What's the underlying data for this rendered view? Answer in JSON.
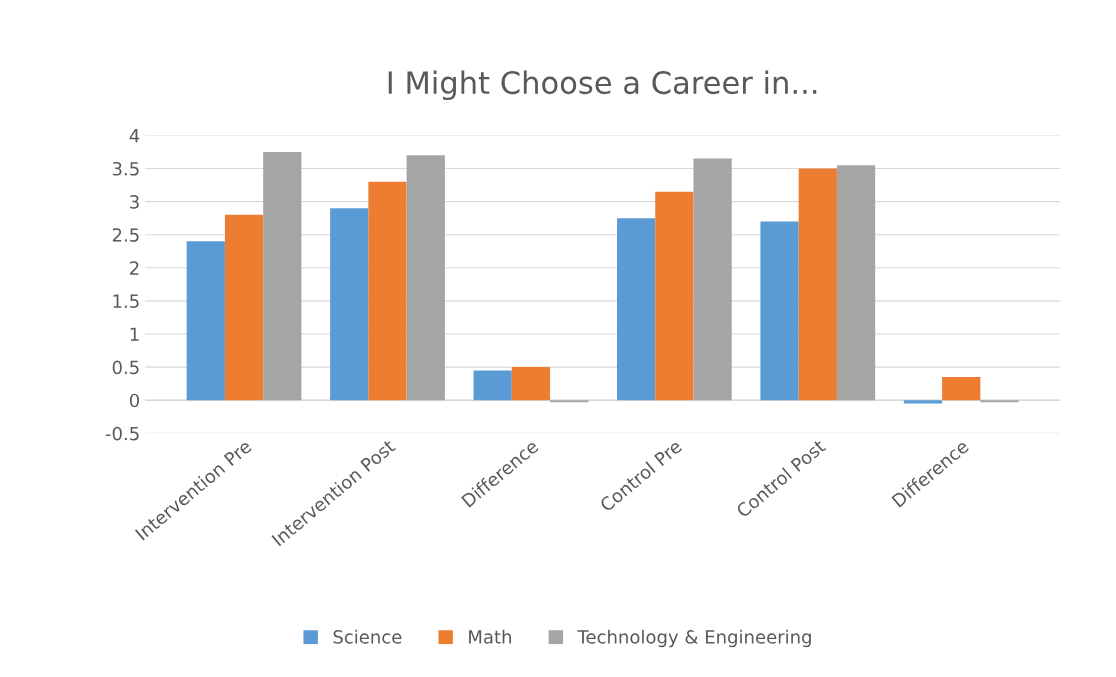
{
  "chart_data": {
    "type": "bar",
    "title": "I Might Choose a Career in...",
    "categories": [
      "Intervention Pre",
      "Intervention Post",
      "Difference",
      "Control Pre",
      "Control Post",
      "Difference"
    ],
    "series": [
      {
        "name": "Science",
        "color": "#5b9bd5",
        "values": [
          2.4,
          2.9,
          0.45,
          2.75,
          2.7,
          -0.05
        ]
      },
      {
        "name": "Math",
        "color": "#ed7d31",
        "values": [
          2.8,
          3.3,
          0.5,
          3.15,
          3.5,
          0.35
        ]
      },
      {
        "name": "Technology & Engineering",
        "color": "#a5a5a5",
        "values": [
          3.75,
          3.7,
          -0.03,
          3.65,
          3.55,
          -0.03
        ]
      }
    ],
    "ylim": [
      -0.5,
      4
    ],
    "yticks": [
      -0.5,
      0,
      0.5,
      1,
      1.5,
      2,
      2.5,
      3,
      3.5,
      4
    ],
    "grid": "y",
    "legend": "bottom"
  }
}
